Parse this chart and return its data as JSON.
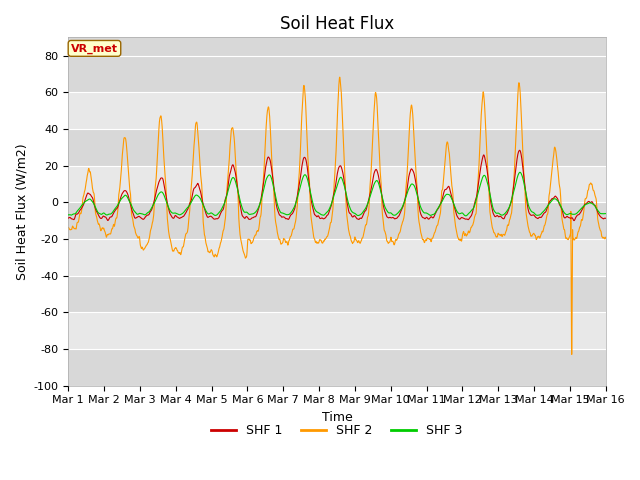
{
  "title": "Soil Heat Flux",
  "xlabel": "Time",
  "ylabel": "Soil Heat Flux (W/m2)",
  "ylim": [
    -100,
    90
  ],
  "yticks": [
    -100,
    -80,
    -60,
    -40,
    -20,
    0,
    20,
    40,
    60,
    80
  ],
  "xtick_labels": [
    "Mar 1",
    "Mar 2",
    "Mar 3",
    "Mar 4",
    "Mar 5",
    "Mar 6",
    "Mar 7",
    "Mar 8",
    "Mar 9",
    "Mar 10",
    "Mar 11",
    "Mar 12",
    "Mar 13",
    "Mar 14",
    "Mar 15",
    "Mar 16"
  ],
  "legend_labels": [
    "SHF 1",
    "SHF 2",
    "SHF 3"
  ],
  "line_colors": [
    "#cc0000",
    "#ff9900",
    "#00cc00"
  ],
  "annotation_text": "VR_met",
  "annotation_color": "#cc0000",
  "annotation_bg": "#ffffcc",
  "band_colors": [
    "#d8d8d8",
    "#e8e8e8"
  ],
  "title_fontsize": 12,
  "axis_fontsize": 9,
  "tick_fontsize": 8,
  "n_days": 15,
  "points_per_day": 144,
  "figsize": [
    6.4,
    4.8
  ],
  "dpi": 100
}
